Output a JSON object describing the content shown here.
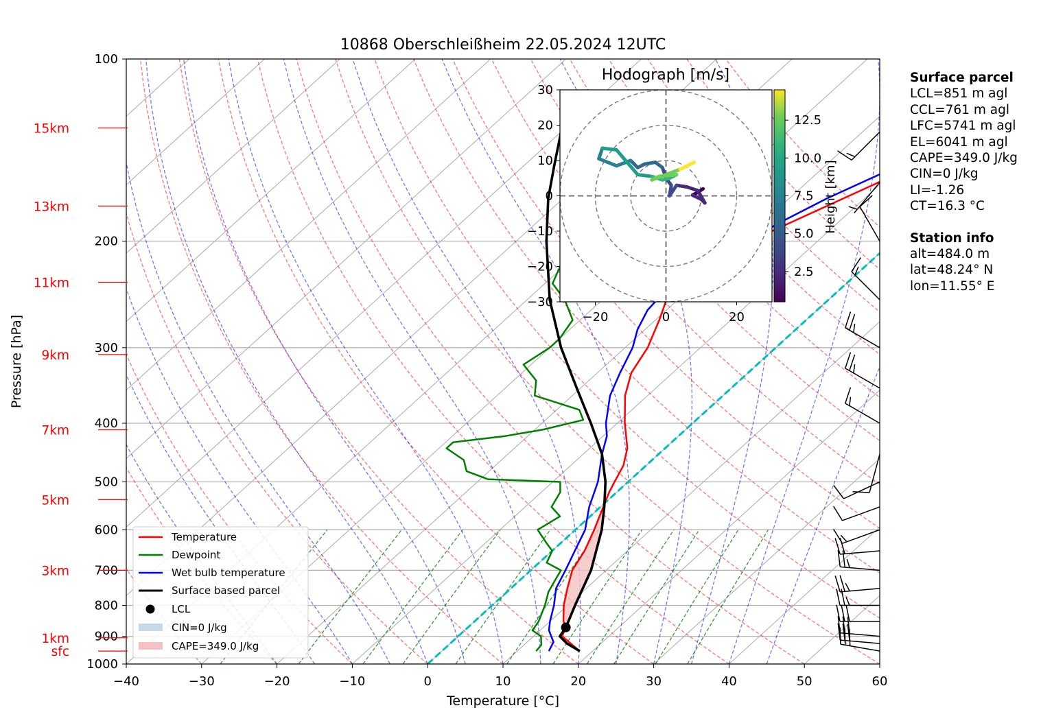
{
  "chart_data": {
    "type": "line",
    "title": "10868 Oberschleißheim 22.05.2024 12UTC",
    "xlabel": "Temperature [°C]",
    "ylabel": "Pressure [hPa]",
    "xlim": [
      -40,
      60
    ],
    "ylim": [
      1000,
      100
    ],
    "y_scale": "log",
    "skew": "skew-T",
    "grid": true,
    "x_ticks": [
      "−40",
      "−30",
      "−20",
      "−10",
      "0",
      "10",
      "20",
      "30",
      "40",
      "50",
      "60"
    ],
    "x_tick_values": [
      -40,
      -30,
      -20,
      -10,
      0,
      10,
      20,
      30,
      40,
      50,
      60
    ],
    "y_ticks": [
      "100",
      "200",
      "300",
      "400",
      "500",
      "600",
      "700",
      "800",
      "900",
      "1000"
    ],
    "y_tick_values": [
      100,
      200,
      300,
      400,
      500,
      600,
      700,
      800,
      900,
      1000
    ],
    "height_labels": [
      {
        "label": "15km",
        "p": 130
      },
      {
        "label": "13km",
        "p": 175
      },
      {
        "label": "11km",
        "p": 234
      },
      {
        "label": "9km",
        "p": 308
      },
      {
        "label": "7km",
        "p": 410
      },
      {
        "label": "5km",
        "p": 535
      },
      {
        "label": "3km",
        "p": 700
      },
      {
        "label": "1km",
        "p": 905
      },
      {
        "label": "sfc",
        "p": 952
      }
    ],
    "legend": {
      "position": "lower-left",
      "entries": [
        "Temperature",
        "Dewpoint",
        "Wet bulb temperature",
        "Surface based parcel",
        "LCL",
        "CIN=0 J/kg",
        "CAPE=349.0 J/kg"
      ]
    },
    "series": [
      {
        "name": "Temperature",
        "color": "#ff0000",
        "points": [
          [
            952,
            18.3
          ],
          [
            925,
            16
          ],
          [
            900,
            13.8
          ],
          [
            870,
            13
          ],
          [
            850,
            11.8
          ],
          [
            800,
            9.5
          ],
          [
            750,
            7.5
          ],
          [
            700,
            5.5
          ],
          [
            650,
            4.3
          ],
          [
            600,
            2.5
          ],
          [
            560,
            0.8
          ],
          [
            520,
            -1.0
          ],
          [
            500,
            -1.8
          ],
          [
            470,
            -3.0
          ],
          [
            440,
            -5.0
          ],
          [
            400,
            -9.0
          ],
          [
            360,
            -13.0
          ],
          [
            330,
            -15.5
          ],
          [
            300,
            -17.0
          ],
          [
            270,
            -19.5
          ],
          [
            250,
            -21.5
          ],
          [
            230,
            -22.0
          ],
          [
            210,
            -20.5
          ],
          [
            195,
            -18.0
          ],
          [
            180,
            -15.0
          ],
          [
            160,
            -10.5
          ],
          [
            145,
            -8.0
          ],
          [
            132,
            -6.0
          ]
        ]
      },
      {
        "name": "Dewpoint",
        "color": "#008000",
        "points": [
          [
            952,
            12.5
          ],
          [
            930,
            12.3
          ],
          [
            900,
            11.0
          ],
          [
            880,
            9.0
          ],
          [
            850,
            8.5
          ],
          [
            800,
            7.0
          ],
          [
            760,
            5.5
          ],
          [
            720,
            4.5
          ],
          [
            700,
            4.0
          ],
          [
            680,
            1.0
          ],
          [
            650,
            0.0
          ],
          [
            630,
            -2.0
          ],
          [
            600,
            -5.0
          ],
          [
            570,
            -4.0
          ],
          [
            550,
            -6.5
          ],
          [
            520,
            -7.5
          ],
          [
            500,
            -9.0
          ],
          [
            495,
            -19.0
          ],
          [
            480,
            -23.0
          ],
          [
            460,
            -25.0
          ],
          [
            440,
            -29.0
          ],
          [
            430,
            -29.0
          ],
          [
            420,
            -23.0
          ],
          [
            410,
            -19.0
          ],
          [
            395,
            -15.0
          ],
          [
            380,
            -17.0
          ],
          [
            360,
            -25.0
          ],
          [
            340,
            -27.0
          ],
          [
            320,
            -31.0
          ],
          [
            300,
            -30.0
          ],
          [
            290,
            -30.0
          ],
          [
            270,
            -31.0
          ],
          [
            250,
            -35.0
          ],
          [
            235,
            -39.0
          ],
          [
            220,
            -40.5
          ],
          [
            200,
            -41.0
          ],
          [
            185,
            -42.5
          ],
          [
            165,
            -44.5
          ],
          [
            150,
            -46.0
          ],
          [
            140,
            -47.5
          ],
          [
            132,
            -48.5
          ]
        ]
      },
      {
        "name": "Wet bulb temperature",
        "color": "#0000ff",
        "points": [
          [
            952,
            14.2
          ],
          [
            920,
            13.5
          ],
          [
            880,
            11.2
          ],
          [
            850,
            10.0
          ],
          [
            800,
            8.2
          ],
          [
            750,
            6.0
          ],
          [
            700,
            4.6
          ],
          [
            650,
            3.0
          ],
          [
            600,
            1.3
          ],
          [
            550,
            -1.5
          ],
          [
            500,
            -4.0
          ],
          [
            450,
            -7.5
          ],
          [
            420,
            -9.5
          ],
          [
            400,
            -11.5
          ],
          [
            360,
            -15.0
          ],
          [
            330,
            -17.0
          ],
          [
            300,
            -19.0
          ],
          [
            280,
            -21.0
          ],
          [
            260,
            -22.5
          ],
          [
            240,
            -23.0
          ],
          [
            220,
            -21.5
          ],
          [
            200,
            -19.5
          ],
          [
            185,
            -17.5
          ],
          [
            170,
            -15.0
          ],
          [
            155,
            -11.5
          ],
          [
            140,
            -8.5
          ],
          [
            132,
            -7.0
          ]
        ]
      },
      {
        "name": "Surface based parcel",
        "color": "#000000",
        "points": [
          [
            952,
            18.3
          ],
          [
            925,
            15.5
          ],
          [
            900,
            13.5
          ],
          [
            870,
            13.0
          ],
          [
            800,
            11.0
          ],
          [
            700,
            8.0
          ],
          [
            600,
            3.5
          ],
          [
            550,
            0.5
          ],
          [
            500,
            -3.0
          ],
          [
            450,
            -7.5
          ],
          [
            400,
            -13.5
          ],
          [
            350,
            -20.5
          ],
          [
            300,
            -28.5
          ],
          [
            250,
            -37.0
          ],
          [
            200,
            -46.0
          ],
          [
            170,
            -52.0
          ],
          [
            150,
            -56.0
          ],
          [
            132,
            -60.0
          ]
        ]
      }
    ],
    "lcl": {
      "label": "LCL",
      "p": 870,
      "t": 13.0
    },
    "cin": "CIN=0 J/kg",
    "cape": "CAPE=349.0 J/kg",
    "cape_layer": [
      {
        "p": 870,
        "tenv": 13.0,
        "tparcel": 13.0
      },
      {
        "p": 800,
        "tenv": 9.5,
        "tparcel": 11.0
      },
      {
        "p": 750,
        "tenv": 7.5,
        "tparcel": 9.6
      },
      {
        "p": 700,
        "tenv": 5.5,
        "tparcel": 8.0
      },
      {
        "p": 650,
        "tenv": 4.3,
        "tparcel": 5.8
      },
      {
        "p": 600,
        "tenv": 2.5,
        "tparcel": 3.5
      },
      {
        "p": 560,
        "tenv": 0.8,
        "tparcel": 1.2
      },
      {
        "p": 530,
        "tenv": -0.6,
        "tparcel": -0.7
      }
    ],
    "wind_barbs": [
      {
        "p": 952,
        "dir": 280,
        "speed": 30
      },
      {
        "p": 925,
        "dir": 275,
        "speed": 30
      },
      {
        "p": 900,
        "dir": 275,
        "speed": 30
      },
      {
        "p": 850,
        "dir": 270,
        "speed": 30
      },
      {
        "p": 800,
        "dir": 270,
        "speed": 25
      },
      {
        "p": 750,
        "dir": 265,
        "speed": 25
      },
      {
        "p": 700,
        "dir": 275,
        "speed": 25
      },
      {
        "p": 650,
        "dir": 265,
        "speed": 20
      },
      {
        "p": 600,
        "dir": 250,
        "speed": 15
      },
      {
        "p": 550,
        "dir": 250,
        "speed": 10
      },
      {
        "p": 500,
        "dir": 245,
        "speed": 10
      },
      {
        "p": 450,
        "dir": 195,
        "speed": 10
      },
      {
        "p": 400,
        "dir": 300,
        "speed": 15
      },
      {
        "p": 350,
        "dir": 300,
        "speed": 25
      },
      {
        "p": 300,
        "dir": 300,
        "speed": 25
      },
      {
        "p": 250,
        "dir": 315,
        "speed": 15
      },
      {
        "p": 200,
        "dir": 330,
        "speed": 10
      },
      {
        "p": 160,
        "dir": 220,
        "speed": 5
      },
      {
        "p": 132,
        "dir": 225,
        "speed": 15
      }
    ],
    "hodograph": {
      "title": "Hodograph [m/s]",
      "xlim": [
        -30,
        30
      ],
      "ylim": [
        -30,
        30
      ],
      "x_ticks": [
        "−20",
        "0",
        "20"
      ],
      "x_tick_values": [
        -20,
        0,
        20
      ],
      "y_ticks": [
        "30",
        "20",
        "10",
        "0",
        "−10",
        "−20",
        "−30"
      ],
      "y_tick_values": [
        30,
        20,
        10,
        0,
        -10,
        -20,
        -30
      ],
      "rings": [
        10,
        20,
        30
      ],
      "colorbar_label": "Height [km]",
      "colorbar_ticks": [
        "2.5",
        "5.0",
        "7.5",
        "10.0",
        "12.5"
      ],
      "colorbar_values": [
        2.5,
        5.0,
        7.5,
        10.0,
        12.5
      ],
      "height_range_km": [
        0.5,
        14.5
      ],
      "points": [
        {
          "u": 10.5,
          "v": 2.0,
          "h": 0.5
        },
        {
          "u": 9.0,
          "v": 1.0,
          "h": 1.0
        },
        {
          "u": 7.5,
          "v": 0.2,
          "h": 1.4
        },
        {
          "u": 10.0,
          "v": -1.0,
          "h": 1.8
        },
        {
          "u": 11.0,
          "v": -2.0,
          "h": 2.2
        },
        {
          "u": 9.0,
          "v": 1.5,
          "h": 2.6
        },
        {
          "u": 6.0,
          "v": 2.5,
          "h": 3.0
        },
        {
          "u": 3.0,
          "v": 3.0,
          "h": 3.4
        },
        {
          "u": 1.0,
          "v": 0.0,
          "h": 3.8
        },
        {
          "u": 1.5,
          "v": 3.0,
          "h": 4.2
        },
        {
          "u": 0.0,
          "v": 5.0,
          "h": 4.6
        },
        {
          "u": -1.0,
          "v": 8.0,
          "h": 5.0
        },
        {
          "u": -3.0,
          "v": 9.5,
          "h": 5.5
        },
        {
          "u": -6.0,
          "v": 9.0,
          "h": 6.0
        },
        {
          "u": -8.0,
          "v": 8.0,
          "h": 6.5
        },
        {
          "u": -10.0,
          "v": 10.0,
          "h": 7.0
        },
        {
          "u": -14.0,
          "v": 8.5,
          "h": 7.5
        },
        {
          "u": -19.0,
          "v": 10.5,
          "h": 8.0
        },
        {
          "u": -18.0,
          "v": 13.5,
          "h": 8.5
        },
        {
          "u": -14.0,
          "v": 13.0,
          "h": 9.0
        },
        {
          "u": -11.0,
          "v": 9.5,
          "h": 9.5
        },
        {
          "u": -8.0,
          "v": 6.0,
          "h": 10.0
        },
        {
          "u": -4.0,
          "v": 5.5,
          "h": 10.5
        },
        {
          "u": -1.0,
          "v": 4.5,
          "h": 11.0
        },
        {
          "u": 1.0,
          "v": 5.0,
          "h": 11.5
        },
        {
          "u": 3.0,
          "v": 6.0,
          "h": 12.0
        },
        {
          "u": -2.0,
          "v": 5.5,
          "h": 12.5
        },
        {
          "u": -4.0,
          "v": 4.5,
          "h": 13.0
        },
        {
          "u": 0.0,
          "v": 6.0,
          "h": 13.5
        },
        {
          "u": 4.0,
          "v": 7.5,
          "h": 14.0
        },
        {
          "u": 8.0,
          "v": 9.5,
          "h": 14.5
        }
      ]
    }
  },
  "surface_parcel": {
    "header": "Surface parcel",
    "lines": [
      "LCL=851 m agl",
      "CCL=761 m agl",
      "LFC=5741 m agl",
      "EL=6041 m agl",
      "CAPE=349.0 J/kg",
      "CIN=0 J/kg",
      "LI=-1.26",
      "CT=16.3 °C"
    ]
  },
  "station_info": {
    "header": "Station info",
    "lines": [
      "alt=484.0 m",
      "lat=48.24° N",
      "lon=11.55° E"
    ]
  },
  "colors": {
    "temperature": "#ff0000",
    "dewpoint": "#008000",
    "wetbulb": "#0000ff",
    "parcel": "#000000",
    "height_labels": "#ff0000",
    "dry_adiabat": "#ff0000",
    "moist_adiabat": "#0000ff",
    "mixing_ratio": "#008000",
    "freezing_isotherm": "#00bfbf",
    "cape_fill": "#f4c2c2",
    "cin_fill": "#c7d9e8",
    "grid": "#b0b0b0"
  }
}
